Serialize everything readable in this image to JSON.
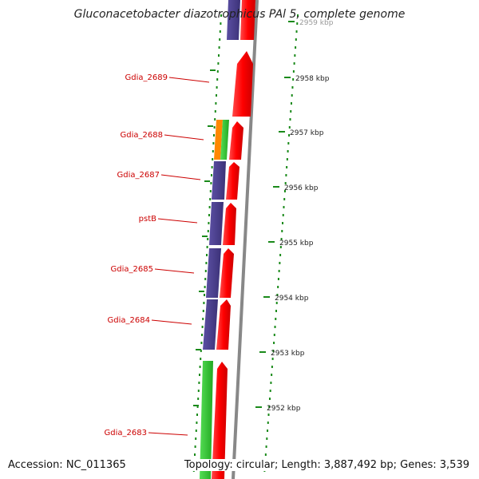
{
  "title": "Gluconacetobacter diazotrophicus PAl 5, complete genome",
  "accession_text": "Accession: NC_011365",
  "summary_text": "Topology: circular; Length: 3,887,492 bp; Genes: 3,539",
  "scale": {
    "unit": "kbp",
    "ticks": [
      {
        "kbp": 2959,
        "label": "2959 kbp"
      },
      {
        "kbp": 2958,
        "label": "2958 kbp"
      },
      {
        "kbp": 2957,
        "label": "2957 kbp"
      },
      {
        "kbp": 2956,
        "label": "2956 kbp"
      },
      {
        "kbp": 2955,
        "label": "2955 kbp"
      },
      {
        "kbp": 2954,
        "label": "2954 kbp"
      },
      {
        "kbp": 2953,
        "label": "2953 kbp"
      },
      {
        "kbp": 2952,
        "label": "2952 kbp"
      }
    ]
  },
  "gene_labels": [
    {
      "id": "Gdia_2689",
      "label": "Gdia_2689"
    },
    {
      "id": "Gdia_2688",
      "label": "Gdia_2688"
    },
    {
      "id": "Gdia_2687",
      "label": "Gdia_2687"
    },
    {
      "id": "pstB",
      "label": "pstB"
    },
    {
      "id": "Gdia_2685",
      "label": "Gdia_2685"
    },
    {
      "id": "Gdia_2684",
      "label": "Gdia_2684"
    },
    {
      "id": "Gdia_2683",
      "label": "Gdia_2683"
    }
  ],
  "colors": {
    "cds": "#ff0000",
    "cog_purple": "#4b3f8f",
    "cog_green": "#33cc33",
    "cog_orange": "#ff8800",
    "gc_dots": "#1a8a1a",
    "backbone": "#888888",
    "label": "#cc0000"
  }
}
